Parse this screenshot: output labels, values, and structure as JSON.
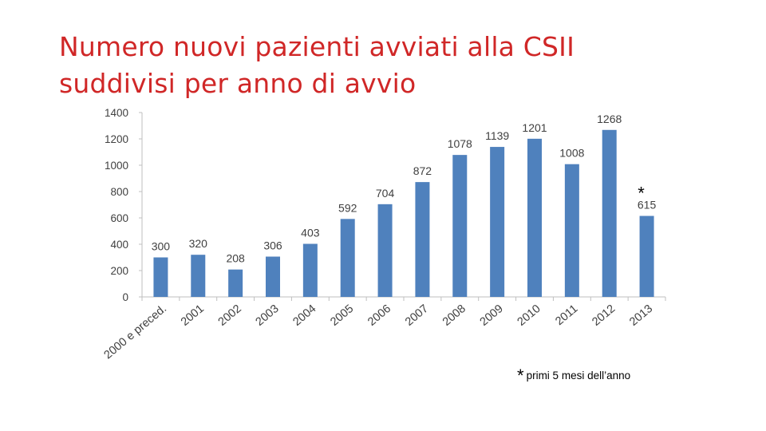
{
  "slide": {
    "title_line1": "Numero nuovi pazienti avviati alla CSII",
    "title_line2": "suddivisi per anno di avvio"
  },
  "colors": {
    "title": "#d02727",
    "bar": "#4f81bd",
    "axis": "#bfbfbf",
    "text": "#404040"
  },
  "chart_data": {
    "type": "bar",
    "title": "",
    "xlabel": "",
    "ylabel": "",
    "categories": [
      "2000 e preced.",
      "2001",
      "2002",
      "2003",
      "2004",
      "2005",
      "2006",
      "2007",
      "2008",
      "2009",
      "2010",
      "2011",
      "2012",
      "2013"
    ],
    "values": [
      300,
      320,
      208,
      306,
      403,
      592,
      704,
      872,
      1078,
      1139,
      1201,
      1008,
      1268,
      615
    ],
    "ylim": [
      0,
      1400
    ],
    "yticks": [
      0,
      200,
      400,
      600,
      800,
      1000,
      1200,
      1400
    ],
    "grid": false,
    "legend": "none",
    "annotations": [
      {
        "category": "2013",
        "text": "*"
      }
    ]
  },
  "footnote": {
    "marker": "*",
    "text": "primi 5 mesi dell’anno"
  }
}
